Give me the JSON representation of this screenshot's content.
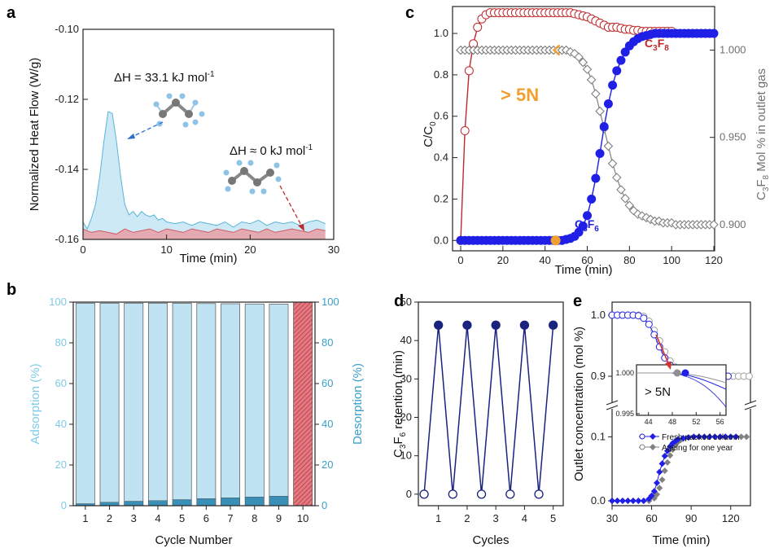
{
  "panels": {
    "a": "a",
    "b": "b",
    "c": "c",
    "d": "d",
    "e": "e"
  },
  "colors": {
    "blue": "#1f1fe6",
    "red": "#c0282a",
    "gray": "#808080",
    "lightblue": "#bfe3f3",
    "lightred": "#e89aa0",
    "orange": "#f0a030",
    "cyan": "#7fcbe6"
  },
  "chart_data": [
    {
      "id": "a",
      "type": "area",
      "xlabel": "Time (min)",
      "ylabel": "Normalized Heat Flow (W/g)",
      "xlim": [
        0,
        30
      ],
      "ylim": [
        -0.16,
        -0.1
      ],
      "xticks": [
        "0",
        "10",
        "20",
        "30"
      ],
      "yticks": [
        "-0.16",
        "-0.14",
        "-0.12",
        "-0.10"
      ],
      "annotations": {
        "dh1_main": "ΔH = 33.1 kJ mol",
        "dh1_sup": "-1",
        "dh2_main": "ΔH ≈ 0 kJ mol",
        "dh2_sup": "-1"
      },
      "series": [
        {
          "x": [
            0,
            0.5,
            1,
            1.5,
            2,
            2.5,
            3,
            3.5,
            4,
            4.5,
            5,
            5.5,
            6,
            6.5,
            7,
            7.5,
            8,
            8.5,
            9,
            9.5,
            10,
            11,
            12,
            13,
            14,
            15,
            16,
            17,
            18,
            19,
            20,
            21,
            22,
            23,
            24,
            25,
            26,
            27,
            28,
            29
          ],
          "y": [
            -0.155,
            -0.157,
            -0.154,
            -0.15,
            -0.142,
            -0.132,
            -0.1235,
            -0.124,
            -0.132,
            -0.142,
            -0.15,
            -0.153,
            -0.152,
            -0.1535,
            -0.152,
            -0.153,
            -0.1535,
            -0.153,
            -0.1545,
            -0.154,
            -0.155,
            -0.1555,
            -0.155,
            -0.156,
            -0.155,
            -0.1555,
            -0.156,
            -0.155,
            -0.1565,
            -0.155,
            -0.1555,
            -0.1545,
            -0.156,
            -0.155,
            -0.1555,
            -0.155,
            -0.156,
            -0.155,
            -0.1545,
            -0.1555
          ]
        },
        {
          "x": [
            0,
            1,
            2,
            3,
            4,
            5,
            6,
            7,
            8,
            9,
            10,
            11,
            12,
            13,
            14,
            15,
            16,
            17,
            18,
            19,
            20,
            21,
            22,
            23,
            24,
            25,
            26,
            27,
            28,
            29
          ],
          "y": [
            -0.157,
            -0.158,
            -0.1575,
            -0.158,
            -0.1585,
            -0.157,
            -0.158,
            -0.1575,
            -0.157,
            -0.158,
            -0.157,
            -0.1575,
            -0.158,
            -0.157,
            -0.1575,
            -0.158,
            -0.157,
            -0.1575,
            -0.158,
            -0.157,
            -0.1575,
            -0.158,
            -0.157,
            -0.158,
            -0.1575,
            -0.157,
            -0.1575,
            -0.158,
            -0.157,
            -0.1575
          ]
        }
      ]
    },
    {
      "id": "b",
      "type": "bar",
      "xlabel": "Cycle Number",
      "ylabel_left": "Adsorption (%)",
      "ylabel_right": "Desorption (%)",
      "categories": [
        "1",
        "2",
        "3",
        "4",
        "5",
        "6",
        "7",
        "8",
        "9",
        "10"
      ],
      "ylim": [
        0,
        100
      ],
      "yticks": [
        "0",
        "20",
        "40",
        "60",
        "80",
        "100"
      ],
      "series": [
        {
          "values": [
            99.5,
            99.5,
            99.5,
            99.5,
            99.4,
            99.3,
            99.2,
            99.1,
            99.0,
            100
          ]
        },
        {
          "values": [
            1.0,
            1.7,
            2.2,
            2.5,
            3.0,
            3.5,
            3.9,
            4.3,
            4.7,
            0
          ]
        }
      ]
    },
    {
      "id": "c",
      "type": "line",
      "xlabel": "Time (min)",
      "ylabel_left_main": "C/C",
      "ylabel_left_sub": "0",
      "ylabel_right_parts": [
        "C",
        "3",
        "F",
        "8",
        " Mol % in outlet gas"
      ],
      "xlim": [
        0,
        120
      ],
      "ylim_left": [
        -0.05,
        1.13
      ],
      "ylim_right": [
        0.885,
        1.025
      ],
      "xticks": [
        "0",
        "20",
        "40",
        "60",
        "80",
        "100",
        "120"
      ],
      "yticks_left": [
        "0.0",
        "0.2",
        "0.4",
        "0.6",
        "0.8",
        "1.0"
      ],
      "yticks_right": [
        "0.900",
        "0.950",
        "1.000"
      ],
      "annotation": "> 5N",
      "labels": {
        "c3f8": [
          "C",
          "3",
          "F",
          "8"
        ],
        "c3f6": [
          "C",
          "3",
          "F",
          "6"
        ]
      },
      "series": [
        {
          "x": [
            0,
            2,
            4,
            6,
            8,
            10,
            12,
            14,
            16,
            18,
            20,
            22,
            24,
            26,
            28,
            30,
            32,
            34,
            36,
            38,
            40,
            42,
            44,
            46,
            48,
            50,
            52,
            54,
            56,
            58,
            60,
            62,
            64,
            66,
            68,
            70,
            72,
            74,
            76,
            78,
            80,
            82,
            84,
            86,
            88,
            90,
            92,
            94,
            96,
            98,
            100,
            102,
            104,
            106,
            108,
            110,
            112,
            114,
            116,
            118,
            120
          ],
          "y": [
            0,
            0.53,
            0.82,
            0.95,
            1.03,
            1.07,
            1.09,
            1.1,
            1.1,
            1.1,
            1.1,
            1.1,
            1.1,
            1.1,
            1.1,
            1.1,
            1.1,
            1.1,
            1.1,
            1.1,
            1.1,
            1.1,
            1.1,
            1.1,
            1.1,
            1.1,
            1.1,
            1.095,
            1.09,
            1.085,
            1.08,
            1.07,
            1.06,
            1.05,
            1.04,
            1.03,
            1.03,
            1.03,
            1.025,
            1.02,
            1.02,
            1.015,
            1.015,
            1.01,
            1.01,
            1.01,
            1.01,
            1.01,
            1.01,
            1.01,
            1.01,
            1.01,
            1.01,
            1.01,
            1.01,
            1.01,
            1.01,
            1.01,
            1.01,
            1.01,
            1.01
          ]
        },
        {
          "x": [
            0,
            2,
            4,
            6,
            8,
            10,
            12,
            14,
            16,
            18,
            20,
            22,
            24,
            26,
            28,
            30,
            32,
            34,
            36,
            38,
            40,
            42,
            44,
            46,
            48,
            50,
            52,
            54,
            56,
            58,
            60,
            62,
            64,
            66,
            68,
            70,
            72,
            74,
            76,
            78,
            80,
            82,
            84,
            86,
            88,
            90,
            92,
            94,
            96,
            98,
            100,
            102,
            104,
            106,
            108,
            110,
            112,
            114,
            116,
            118,
            120
          ],
          "y": [
            0,
            0,
            0,
            0,
            0,
            0,
            0,
            0,
            0,
            0,
            0,
            0,
            0,
            0,
            0,
            0,
            0,
            0,
            0,
            0,
            0,
            0,
            0,
            0,
            0,
            0.005,
            0.01,
            0.02,
            0.04,
            0.07,
            0.12,
            0.2,
            0.3,
            0.42,
            0.55,
            0.66,
            0.75,
            0.82,
            0.87,
            0.91,
            0.94,
            0.96,
            0.975,
            0.985,
            0.99,
            0.995,
            1.0,
            1.0,
            1.0,
            1.0,
            1.0,
            1.0,
            1.0,
            1.0,
            1.0,
            1.0,
            1.0,
            1.0,
            1.0,
            1.0,
            1.0
          ]
        },
        {
          "x": [
            0,
            2,
            4,
            6,
            8,
            10,
            12,
            14,
            16,
            18,
            20,
            22,
            24,
            26,
            28,
            30,
            32,
            34,
            36,
            38,
            40,
            42,
            44,
            46,
            48,
            50,
            52,
            54,
            56,
            58,
            60,
            62,
            64,
            66,
            68,
            70,
            72,
            74,
            76,
            78,
            80,
            82,
            84,
            86,
            88,
            90,
            92,
            94,
            96,
            98,
            100,
            102,
            104,
            106,
            108,
            110,
            112,
            114,
            116,
            118,
            120
          ],
          "y": [
            1.0,
            1.0,
            1.0,
            1.0,
            1.0,
            1.0,
            1.0,
            1.0,
            1.0,
            1.0,
            1.0,
            1.0,
            1.0,
            1.0,
            1.0,
            1.0,
            1.0,
            1.0,
            1.0,
            1.0,
            1.0,
            1.0,
            1.0,
            1.0,
            1.0,
            1.0,
            0.999,
            0.998,
            0.996,
            0.993,
            0.989,
            0.983,
            0.975,
            0.965,
            0.955,
            0.945,
            0.935,
            0.927,
            0.92,
            0.915,
            0.911,
            0.908,
            0.906,
            0.905,
            0.904,
            0.903,
            0.902,
            0.902,
            0.901,
            0.901,
            0.901,
            0.9,
            0.9,
            0.9,
            0.9,
            0.9,
            0.9,
            0.9,
            0.9,
            0.9,
            0.9
          ]
        }
      ]
    },
    {
      "id": "d",
      "type": "line",
      "xlabel": "Cycles",
      "ylabel_parts": [
        "C",
        "3",
        "F",
        "6",
        " retention (min)"
      ],
      "xlim": [
        0.3,
        5.35
      ],
      "ylim": [
        -3,
        50
      ],
      "xticks": [
        "1",
        "2",
        "3",
        "4",
        "5"
      ],
      "yticks": [
        "0",
        "10",
        "20",
        "30",
        "40",
        "50"
      ],
      "series": [
        {
          "x": [
            0.5,
            1,
            1.5,
            2,
            2.5,
            3,
            3.5,
            4,
            4.5,
            5
          ],
          "y": [
            0,
            44,
            0,
            44,
            0,
            44,
            0,
            44,
            0,
            44
          ]
        }
      ]
    },
    {
      "id": "e",
      "type": "line",
      "xlabel": "Time (min)",
      "ylabel": "Outlet concentration (mol %)",
      "xlim": [
        30,
        135
      ],
      "xticks": [
        "30",
        "60",
        "90",
        "120"
      ],
      "yticks_lower": [
        "0.0",
        "0.1"
      ],
      "yticks_upper": [
        "0.9",
        "1.0"
      ],
      "inset": {
        "xticks": [
          "44",
          "48",
          "52",
          "56"
        ],
        "ytick_top": "1.000",
        "ytick_bottom": "0.995",
        "annotation": "> 5N"
      },
      "legend": [
        "Fresh packed column",
        "Ageing for one year"
      ],
      "series": [
        {
          "x": [
            30,
            34,
            38,
            42,
            46,
            50,
            54,
            58,
            60,
            62,
            64,
            66,
            68,
            70,
            72,
            74,
            76,
            78,
            80,
            84,
            88,
            92,
            96,
            100,
            104,
            108,
            112,
            116,
            120,
            124
          ],
          "y": [
            0,
            0,
            0,
            0,
            0,
            0,
            0,
            0.003,
            0.008,
            0.015,
            0.028,
            0.045,
            0.058,
            0.07,
            0.078,
            0.085,
            0.09,
            0.093,
            0.096,
            0.098,
            0.099,
            0.1,
            0.1,
            0.1,
            0.1,
            0.1,
            0.1,
            0.1,
            0.1,
            0.1
          ]
        },
        {
          "x": [
            30,
            34,
            38,
            42,
            46,
            50,
            54,
            58,
            62,
            64,
            66,
            68,
            70,
            72,
            74,
            76,
            78,
            80,
            82,
            84,
            88,
            92,
            96,
            100,
            104,
            108,
            112,
            116,
            120,
            124,
            128,
            132
          ],
          "y": [
            0,
            0,
            0,
            0,
            0,
            0,
            0,
            0,
            0.004,
            0.01,
            0.02,
            0.033,
            0.047,
            0.06,
            0.071,
            0.08,
            0.087,
            0.092,
            0.095,
            0.097,
            0.099,
            0.1,
            0.1,
            0.1,
            0.1,
            0.1,
            0.1,
            0.1,
            0.1,
            0.1,
            0.1,
            0.1
          ]
        },
        {
          "x": [
            30,
            34,
            38,
            42,
            46,
            50,
            54,
            58,
            62,
            66,
            70,
            74,
            78,
            82,
            86,
            90,
            94,
            98,
            102,
            106,
            110,
            114,
            118
          ],
          "y": [
            1.0,
            1.0,
            1.0,
            1.0,
            1.0,
            0.999,
            0.995,
            0.985,
            0.968,
            0.948,
            0.93,
            0.918,
            0.91,
            0.906,
            0.903,
            0.902,
            0.901,
            0.9,
            0.9,
            0.9,
            0.9,
            0.9,
            0.9
          ]
        },
        {
          "x": [
            30,
            34,
            38,
            42,
            46,
            50,
            54,
            58,
            62,
            66,
            70,
            74,
            78,
            82,
            86,
            90,
            94,
            98,
            102,
            106,
            110,
            114,
            118,
            122,
            126,
            130,
            134
          ],
          "y": [
            1.0,
            1.0,
            1.0,
            1.0,
            1.0,
            1.0,
            0.998,
            0.99,
            0.975,
            0.958,
            0.94,
            0.925,
            0.915,
            0.908,
            0.904,
            0.902,
            0.901,
            0.9,
            0.9,
            0.9,
            0.9,
            0.9,
            0.9,
            0.9,
            0.9,
            0.9,
            0.9
          ]
        }
      ]
    }
  ]
}
